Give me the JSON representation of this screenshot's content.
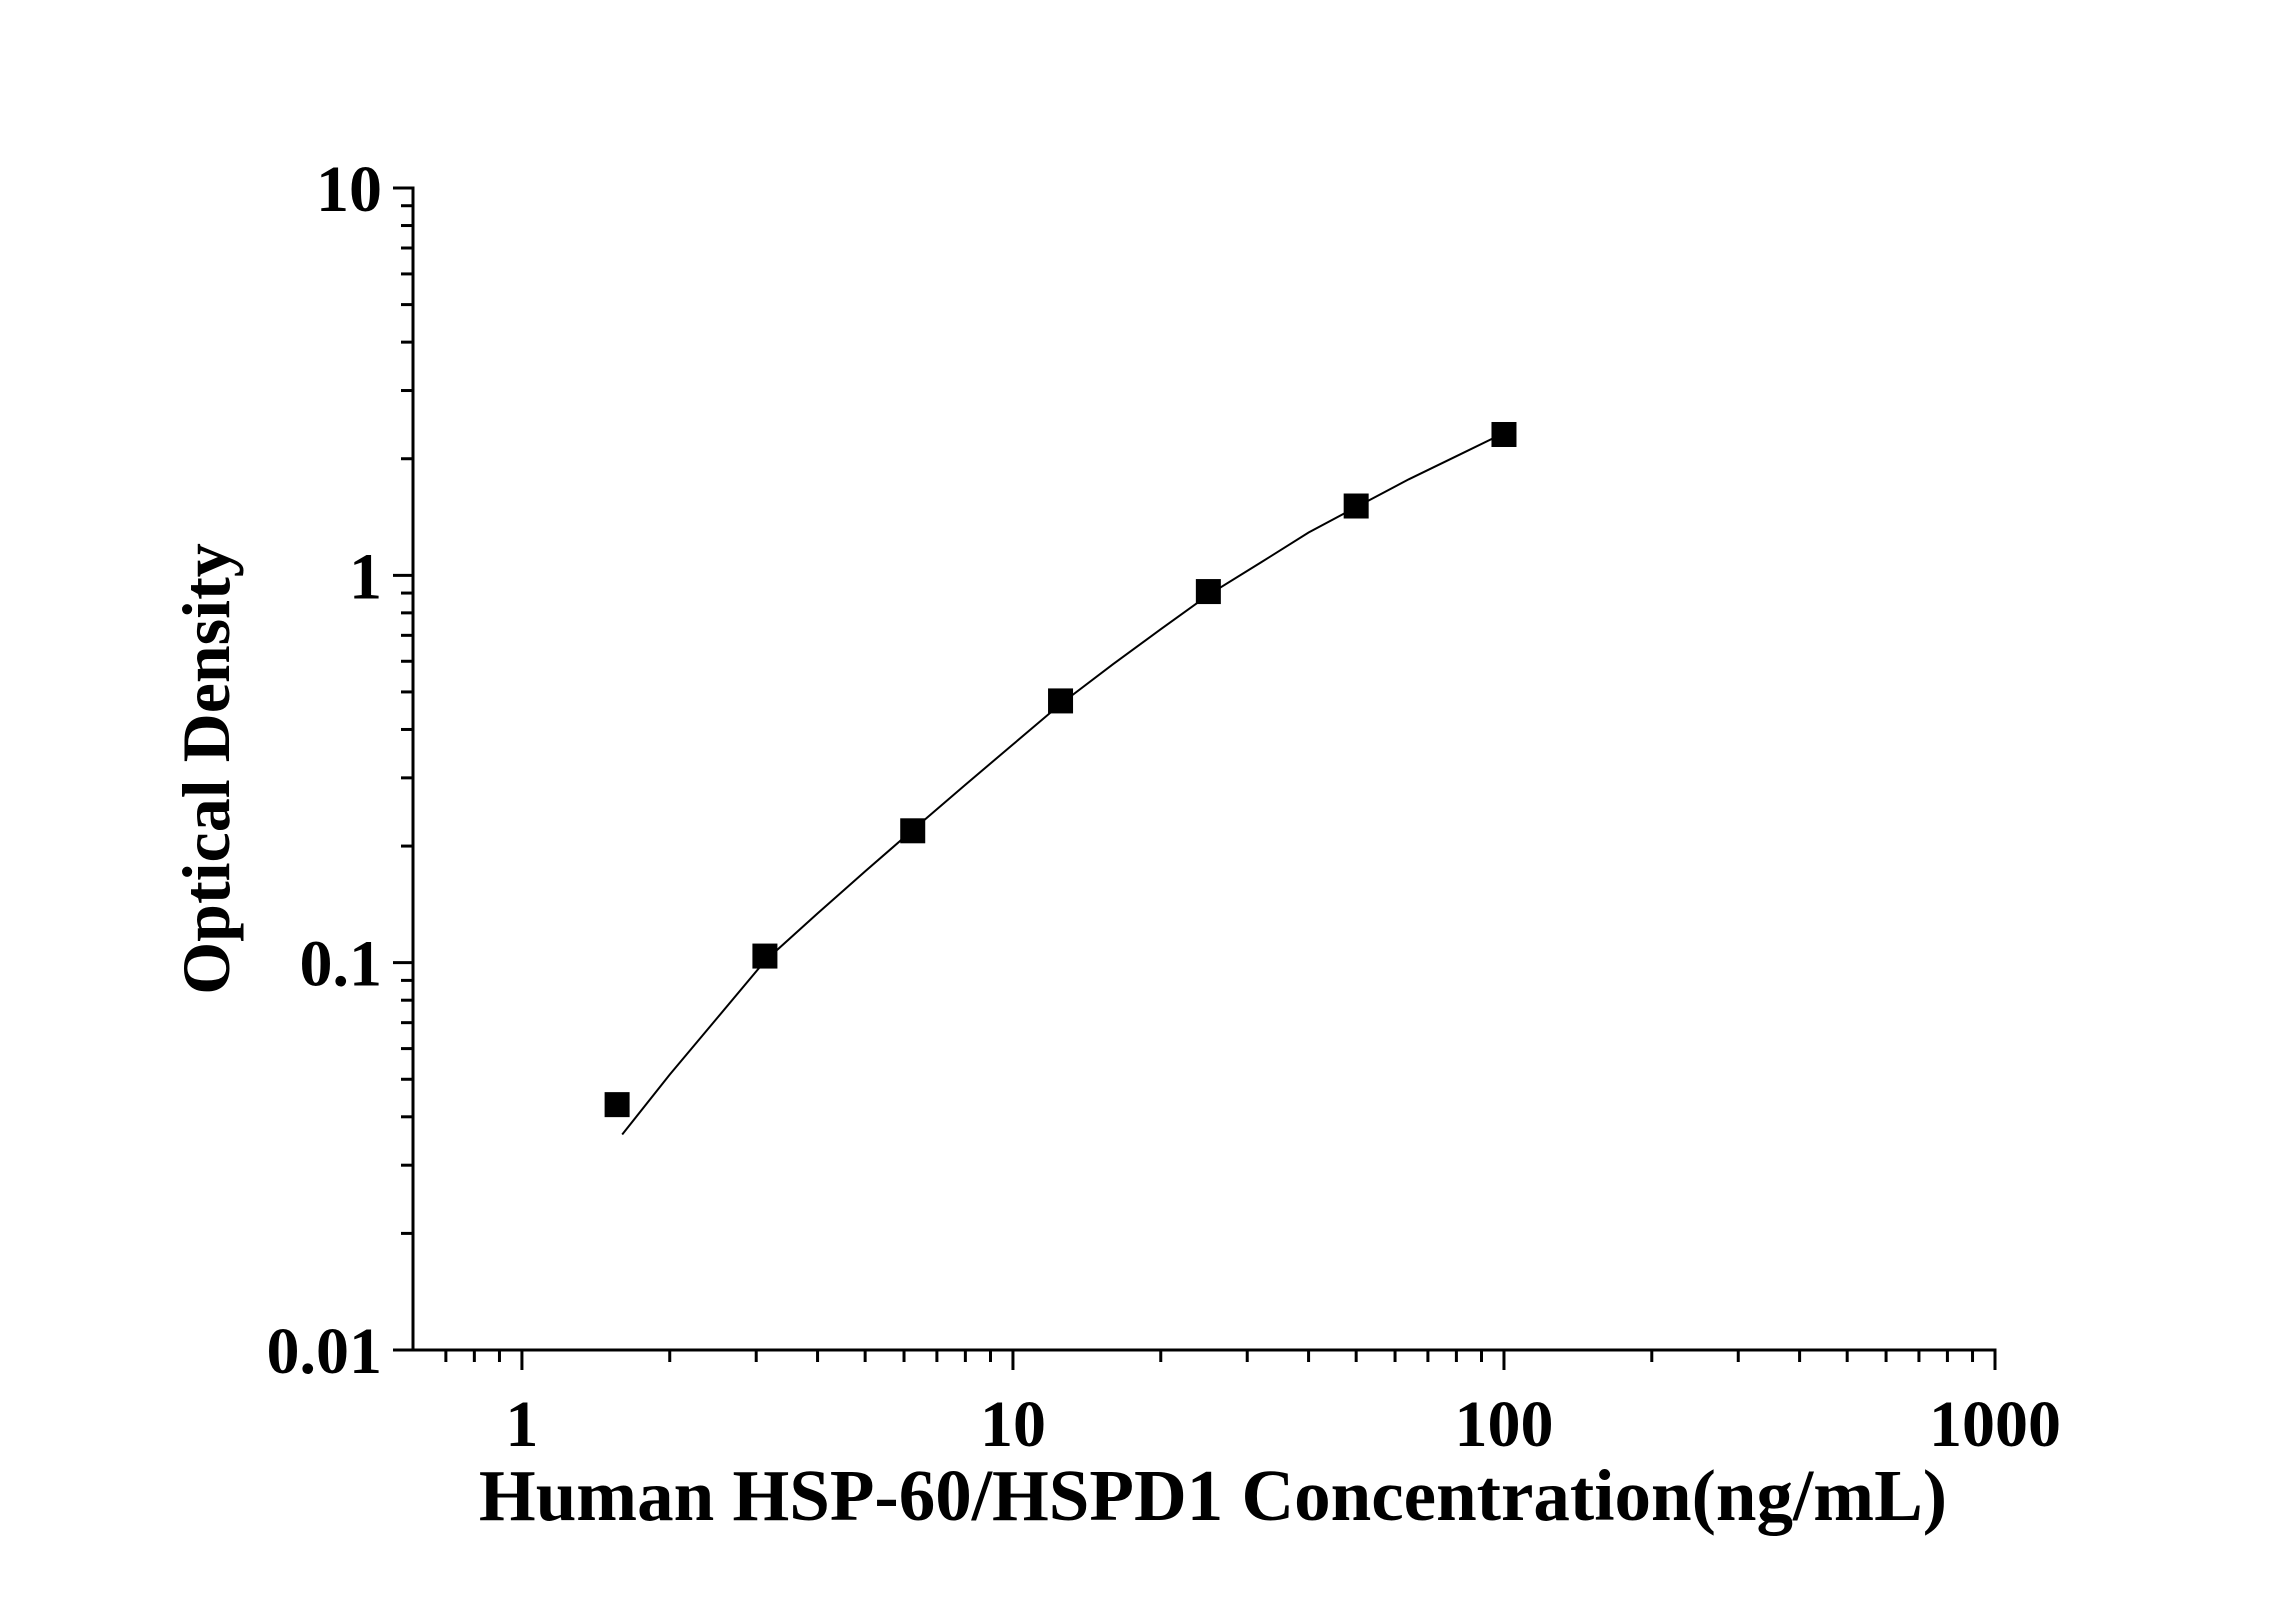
{
  "chart_data": {
    "type": "scatter",
    "xlabel": "Human HSP-60/HSPD1 Concentration(ng/mL)",
    "ylabel": "Optical Density",
    "xscale": "log",
    "yscale": "log",
    "xlim": [
      0.6,
      1000
    ],
    "ylim": [
      0.01,
      10
    ],
    "x_ticks": [
      1,
      10,
      100,
      1000
    ],
    "x_tick_labels": [
      "1",
      "10",
      "100",
      "1000"
    ],
    "y_ticks": [
      10,
      1,
      0.1,
      0.01
    ],
    "y_tick_labels": [
      "10",
      "1",
      "0.1",
      "0.01"
    ],
    "grid": false,
    "series": [
      {
        "type": "scatter",
        "marker": "square",
        "color": "#000000",
        "x": [
          1.5625,
          3.125,
          6.25,
          12.5,
          25,
          50,
          100
        ],
        "y": [
          0.043,
          0.104,
          0.219,
          0.474,
          0.908,
          1.51,
          2.31
        ]
      },
      {
        "type": "line",
        "color": "#000000",
        "x": [
          1.6,
          2,
          2.5,
          3.125,
          4,
          5,
          6.25,
          8,
          10,
          12.5,
          16,
          20,
          25,
          32,
          40,
          50,
          64,
          80,
          100
        ],
        "y": [
          0.036,
          0.0514,
          0.072,
          0.101,
          0.134,
          0.172,
          0.22,
          0.288,
          0.366,
          0.465,
          0.59,
          0.726,
          0.89,
          1.08,
          1.29,
          1.5,
          1.77,
          2.03,
          2.33
        ]
      }
    ]
  }
}
